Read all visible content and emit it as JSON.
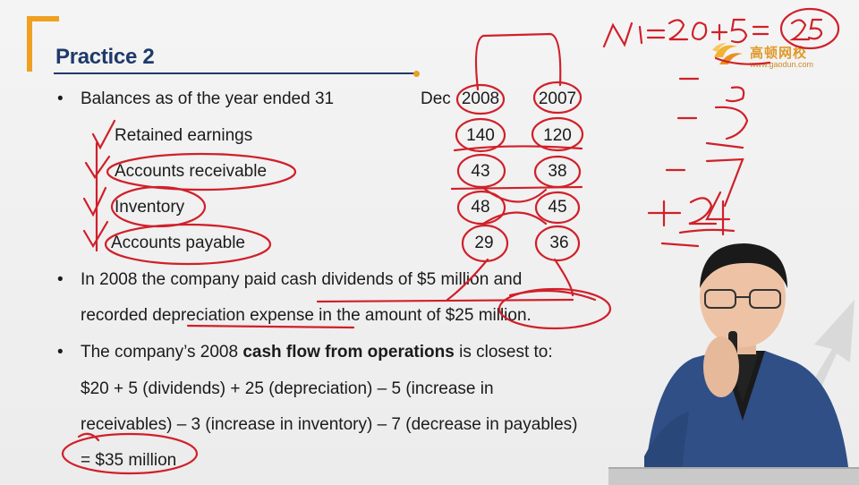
{
  "slide": {
    "title": "Practice 2",
    "bullet1": {
      "text": "Balances as of the year ended 31",
      "dec": "Dec",
      "col_2008": "2008",
      "col_2007": "2007"
    },
    "rows": [
      {
        "label": "Retained earnings",
        "v2008": "140",
        "v2007": "120"
      },
      {
        "label": "Accounts receivable",
        "v2008": "43",
        "v2007": "38"
      },
      {
        "label": "Inventory",
        "v2008": "48",
        "v2007": "45"
      },
      {
        "label": "Accounts payable",
        "v2008": "29",
        "v2007": "36"
      }
    ],
    "bullet2_line1": "In 2008 the company paid cash dividends of $5 million and",
    "bullet2_line2": "recorded depreciation expense in the amount of $25 million.",
    "bullet3_prefix": "The company’s 2008 ",
    "bullet3_bold": "cash flow from operations",
    "bullet3_suffix": " is closest to:",
    "calc_line1": "$20 + 5 (dividends) + 25 (depreciation) – 5 (increase in",
    "calc_line2": "receivables) – 3 (increase in inventory) – 7 (decrease in payables)",
    "calc_line3": "= $35 million",
    "bullet_char": "•"
  },
  "logo": {
    "name": "高顿网校",
    "url": "www.gaodun.com"
  },
  "handwriting": {
    "ni_formula": "NI = 20+5 = 25",
    "side_marks": "–5  –3  –7  +25"
  },
  "colors": {
    "title": "#1e3a6b",
    "accent": "#f0a020",
    "ink": "#d0202a"
  }
}
